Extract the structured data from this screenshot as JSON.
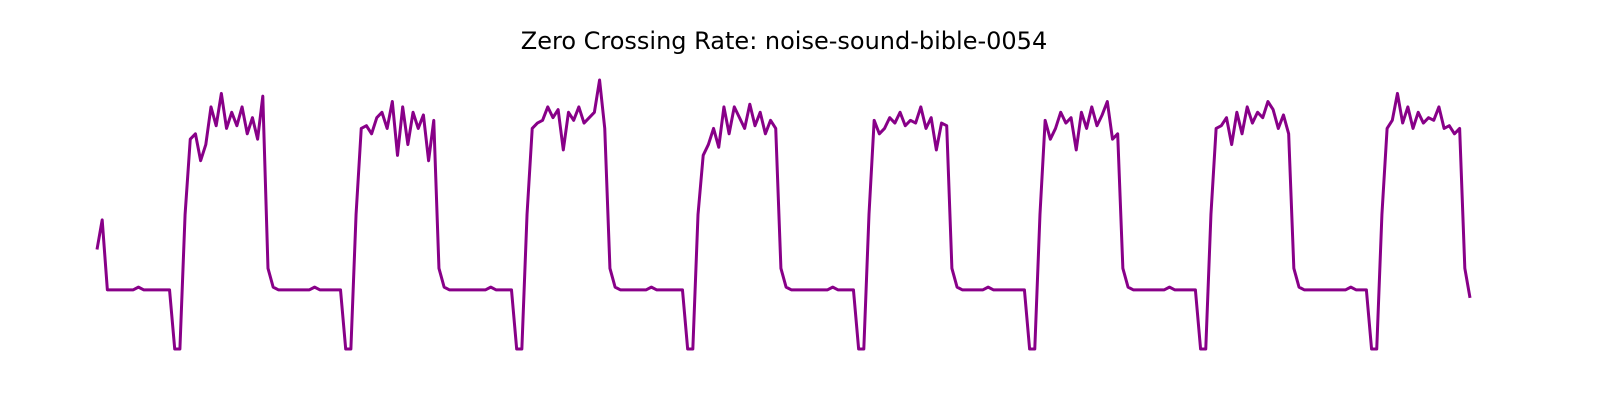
{
  "chart_data": {
    "type": "line",
    "title": "Zero Crossing Rate: noise-sound-bible-0054",
    "color": "#880088",
    "ylim": [
      0,
      1
    ],
    "values": [
      0.37,
      0.48,
      0.22,
      0.22,
      0.22,
      0.22,
      0.22,
      0.22,
      0.23,
      0.22,
      0.22,
      0.22,
      0.22,
      0.22,
      0.22,
      0.0,
      0.0,
      0.5,
      0.78,
      0.8,
      0.7,
      0.76,
      0.9,
      0.83,
      0.95,
      0.82,
      0.88,
      0.83,
      0.9,
      0.8,
      0.86,
      0.78,
      0.94,
      0.3,
      0.23,
      0.22,
      0.22,
      0.22,
      0.22,
      0.22,
      0.22,
      0.22,
      0.23,
      0.22,
      0.22,
      0.22,
      0.22,
      0.22,
      0.0,
      0.0,
      0.5,
      0.82,
      0.83,
      0.8,
      0.86,
      0.88,
      0.82,
      0.92,
      0.72,
      0.9,
      0.76,
      0.88,
      0.82,
      0.87,
      0.7,
      0.85,
      0.3,
      0.23,
      0.22,
      0.22,
      0.22,
      0.22,
      0.22,
      0.22,
      0.22,
      0.22,
      0.23,
      0.22,
      0.22,
      0.22,
      0.22,
      0.0,
      0.0,
      0.5,
      0.82,
      0.84,
      0.85,
      0.9,
      0.86,
      0.89,
      0.74,
      0.88,
      0.85,
      0.9,
      0.84,
      0.86,
      0.88,
      1.0,
      0.82,
      0.3,
      0.23,
      0.22,
      0.22,
      0.22,
      0.22,
      0.22,
      0.22,
      0.23,
      0.22,
      0.22,
      0.22,
      0.22,
      0.22,
      0.22,
      0.0,
      0.0,
      0.5,
      0.72,
      0.76,
      0.82,
      0.75,
      0.9,
      0.8,
      0.9,
      0.86,
      0.82,
      0.91,
      0.83,
      0.88,
      0.8,
      0.85,
      0.82,
      0.3,
      0.23,
      0.22,
      0.22,
      0.22,
      0.22,
      0.22,
      0.22,
      0.22,
      0.22,
      0.23,
      0.22,
      0.22,
      0.22,
      0.22,
      0.0,
      0.0,
      0.5,
      0.85,
      0.8,
      0.82,
      0.86,
      0.84,
      0.88,
      0.83,
      0.85,
      0.84,
      0.9,
      0.82,
      0.86,
      0.74,
      0.84,
      0.83,
      0.3,
      0.23,
      0.22,
      0.22,
      0.22,
      0.22,
      0.22,
      0.23,
      0.22,
      0.22,
      0.22,
      0.22,
      0.22,
      0.22,
      0.22,
      0.0,
      0.0,
      0.5,
      0.85,
      0.78,
      0.82,
      0.88,
      0.84,
      0.86,
      0.74,
      0.88,
      0.82,
      0.9,
      0.83,
      0.87,
      0.92,
      0.78,
      0.8,
      0.3,
      0.23,
      0.22,
      0.22,
      0.22,
      0.22,
      0.22,
      0.22,
      0.22,
      0.23,
      0.22,
      0.22,
      0.22,
      0.22,
      0.22,
      0.0,
      0.0,
      0.5,
      0.82,
      0.83,
      0.86,
      0.76,
      0.88,
      0.8,
      0.9,
      0.84,
      0.88,
      0.86,
      0.92,
      0.89,
      0.82,
      0.87,
      0.8,
      0.3,
      0.23,
      0.22,
      0.22,
      0.22,
      0.22,
      0.22,
      0.22,
      0.22,
      0.22,
      0.22,
      0.23,
      0.22,
      0.22,
      0.22,
      0.0,
      0.0,
      0.5,
      0.82,
      0.85,
      0.95,
      0.84,
      0.9,
      0.82,
      0.88,
      0.84,
      0.86,
      0.85,
      0.9,
      0.82,
      0.83,
      0.8,
      0.82,
      0.3,
      0.19
    ]
  }
}
